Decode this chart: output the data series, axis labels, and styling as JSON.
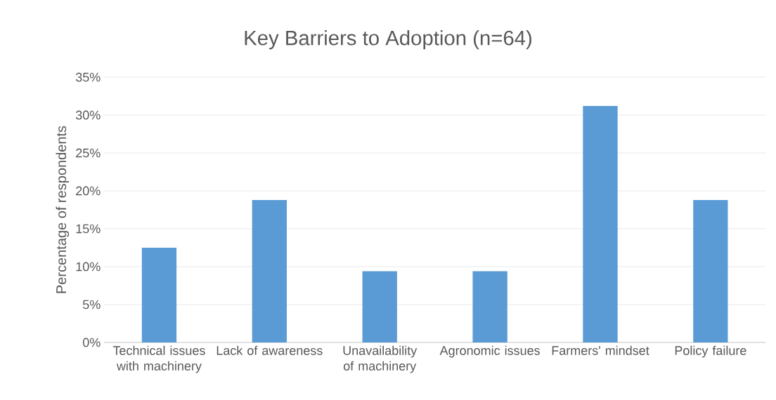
{
  "chart_data": {
    "type": "bar",
    "title": "Key Barriers to Adoption (n=64)",
    "ylabel": "Percentage of respondents",
    "categories": [
      "Technical issues with machinery",
      "Lack of awareness",
      "Unavailability of machinery",
      "Agronomic issues",
      "Farmers' mindset",
      "Policy failure"
    ],
    "values": [
      12.5,
      18.8,
      9.4,
      9.4,
      31.2,
      18.8
    ],
    "color": "#5b9bd5",
    "ylim": [
      0,
      35
    ],
    "yticks": [
      {
        "value": 0,
        "label": "0%"
      },
      {
        "value": 5,
        "label": "5%"
      },
      {
        "value": 10,
        "label": "10%"
      },
      {
        "value": 15,
        "label": "15%"
      },
      {
        "value": 20,
        "label": "20%"
      },
      {
        "value": 25,
        "label": "25%"
      },
      {
        "value": 30,
        "label": "30%"
      },
      {
        "value": 35,
        "label": "35%"
      }
    ],
    "grid": "y"
  }
}
